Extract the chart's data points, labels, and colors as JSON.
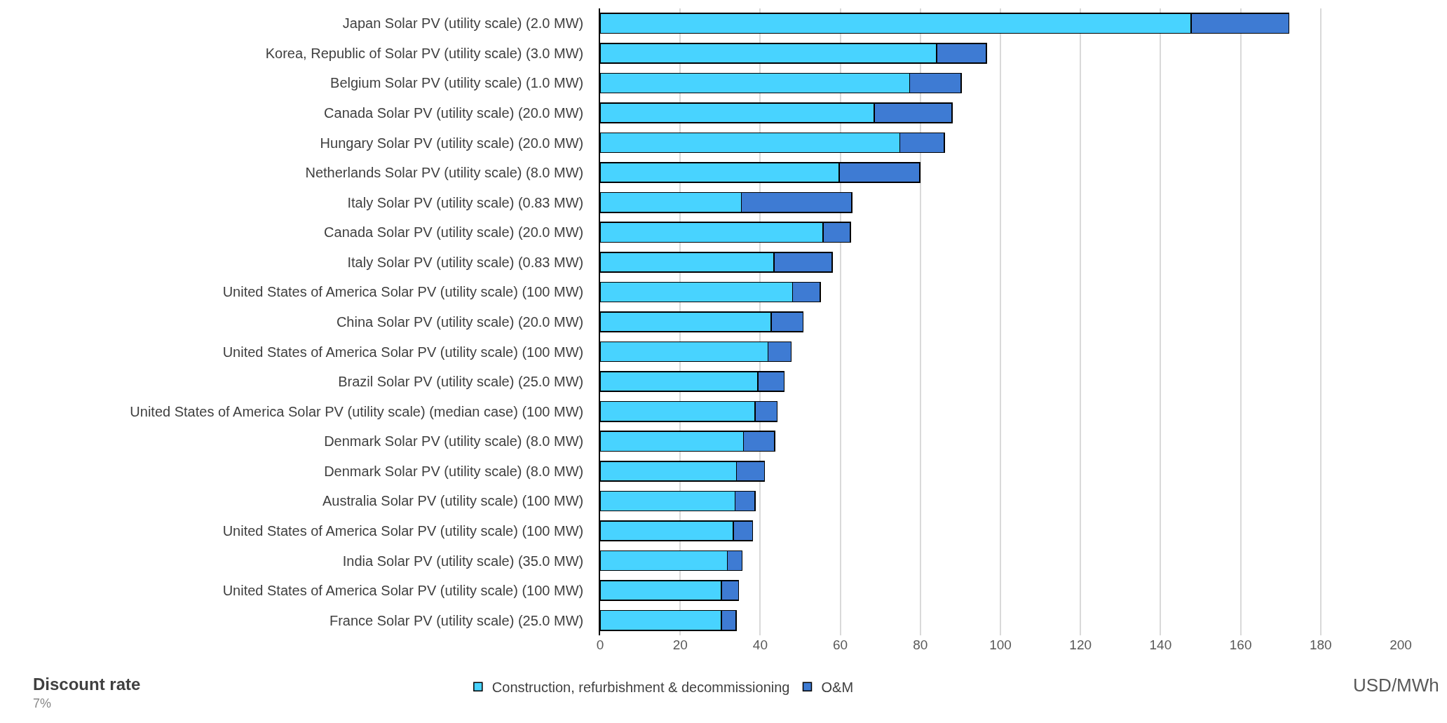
{
  "chart_data": {
    "type": "bar",
    "orientation": "horizontal",
    "stacked": true,
    "xlabel": "USD/MWh",
    "categories": [
      "Japan Solar PV (utility scale) (2.0 MW)",
      "Korea, Republic of Solar PV (utility scale) (3.0 MW)",
      "Belgium Solar PV (utility scale) (1.0 MW)",
      "Canada Solar PV (utility scale) (20.0 MW)",
      "Hungary Solar PV (utility scale) (20.0 MW)",
      "Netherlands Solar PV (utility scale) (8.0 MW)",
      "Italy Solar PV (utility scale) (0.83 MW)",
      "Canada Solar PV (utility scale) (20.0 MW)",
      "Italy Solar PV (utility scale) (0.83 MW)",
      "United States of America Solar PV (utility scale) (100 MW)",
      "China Solar PV (utility scale) (20.0 MW)",
      "United States of America Solar PV (utility scale) (100 MW)",
      "Brazil Solar PV (utility scale) (25.0 MW)",
      "United States of America Solar PV (utility scale) (median case) (100 MW)",
      "Denmark Solar PV (utility scale) (8.0 MW)",
      "Denmark Solar PV (utility scale) (8.0 MW)",
      "Australia Solar PV (utility scale) (100 MW)",
      "United States of America Solar PV (utility scale) (100 MW)",
      "India Solar PV (utility scale) (35.0 MW)",
      "United States of America Solar PV (utility scale) (100 MW)",
      "France Solar PV (utility scale) (25.0 MW)"
    ],
    "series": [
      {
        "name": "Construction, refurbishment & decommissioning",
        "color": "#48d3ff",
        "values": [
          147.6,
          84.1,
          77.3,
          68.5,
          74.9,
          59.7,
          35.3,
          55.7,
          43.4,
          48.1,
          42.7,
          41.9,
          39.4,
          38.7,
          35.8,
          34.1,
          33.7,
          33.3,
          31.8,
          30.3,
          30.3
        ]
      },
      {
        "name": "O&M",
        "color": "#3e7bd3",
        "values": [
          24.5,
          12.4,
          12.9,
          19.4,
          11.1,
          20.2,
          27.6,
          6.8,
          14.6,
          6.9,
          8.0,
          5.8,
          6.6,
          5.5,
          7.8,
          7.0,
          5.0,
          4.8,
          3.7,
          4.3,
          3.7
        ]
      }
    ],
    "xlim": [
      0,
      200
    ],
    "xticks": [
      0,
      20,
      40,
      60,
      80,
      100,
      120,
      140,
      160,
      180,
      200
    ],
    "grid": "x",
    "legend": "bottom",
    "annotations": [
      "Discount rate",
      "7%"
    ]
  }
}
